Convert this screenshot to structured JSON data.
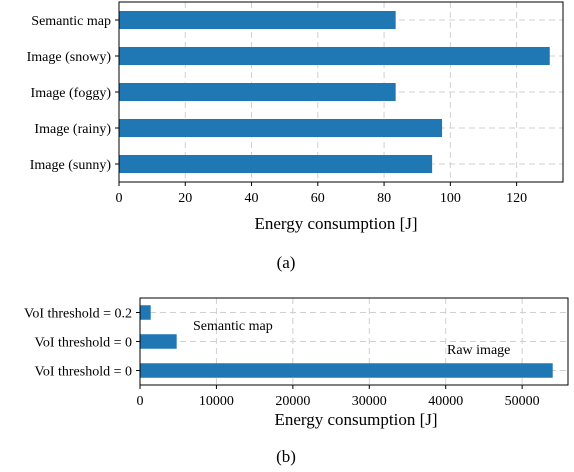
{
  "chart_data": [
    {
      "type": "bar",
      "orientation": "horizontal",
      "categories": [
        "Semantic map",
        "Image (snowy)",
        "Image (foggy)",
        "Image (rainy)",
        "Image (sunny)"
      ],
      "values": [
        83.5,
        130,
        83.5,
        97.5,
        94.5
      ],
      "xlabel": "Energy consumption [J]",
      "xlim": [
        0,
        134
      ],
      "xticks": [
        0,
        20,
        40,
        60,
        80,
        100,
        120
      ],
      "grid": true,
      "color": "#1f77b4",
      "caption": "(a)"
    },
    {
      "type": "bar",
      "orientation": "horizontal",
      "categories": [
        "VoI threshold = 0.2",
        "VoI threshold = 0",
        "VoI threshold = 0"
      ],
      "values": [
        1400,
        4800,
        54000
      ],
      "xlabel": "Energy consumption [J]",
      "xlim": [
        0,
        56000
      ],
      "xticks": [
        0,
        10000,
        20000,
        30000,
        40000,
        50000
      ],
      "grid": true,
      "color": "#1f77b4",
      "annotations": [
        "Semantic map",
        "Raw image"
      ],
      "caption": "(b)"
    }
  ]
}
